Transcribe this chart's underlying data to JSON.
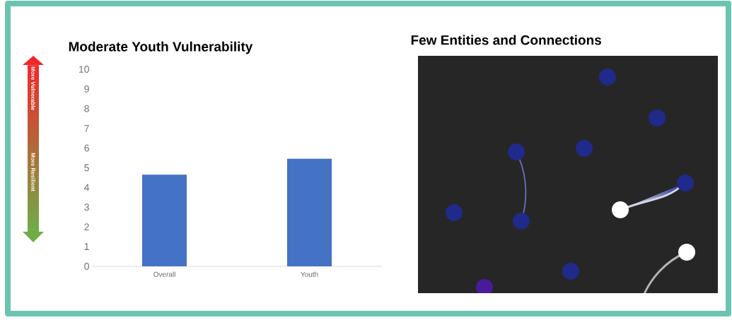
{
  "chart_data": [
    {
      "type": "bar",
      "title": "Moderate Youth Vulnerability",
      "categories": [
        "Overall",
        "Youth"
      ],
      "values": [
        4.65,
        5.46
      ],
      "color": "#4472c4",
      "ylim": [
        0,
        10
      ],
      "yticks": [
        0,
        1,
        2,
        3,
        4,
        5,
        6,
        7,
        8,
        9,
        10
      ],
      "annotations": [
        "More Vulnerable",
        "More Resilient"
      ]
    },
    {
      "type": "other",
      "title": "Few Entities and Connections"
    }
  ]
}
